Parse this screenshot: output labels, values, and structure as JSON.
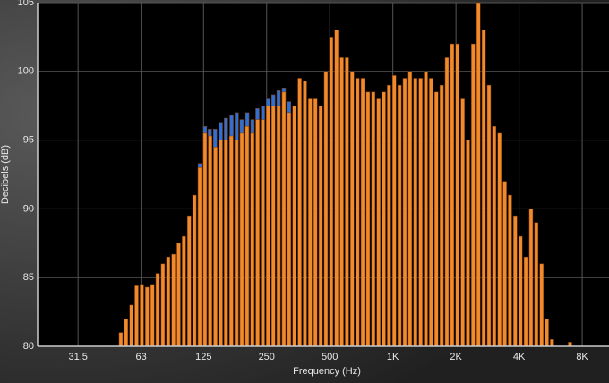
{
  "chart_data": {
    "type": "bar",
    "x_label": "Frequency (Hz)",
    "y_label": "Decibels (dB)",
    "log_x": true,
    "grid": true,
    "xlim": [
      20.2,
      10740
    ],
    "ylim": [
      80,
      105
    ],
    "xticks": [
      31.5,
      63,
      125,
      250,
      500,
      {
        "value": 1000,
        "label": "1K"
      },
      {
        "value": 2000,
        "label": "2K"
      },
      {
        "value": 4000,
        "label": "4K"
      },
      {
        "value": 8000,
        "label": "8K"
      }
    ],
    "yticks": [
      80,
      85,
      90,
      95,
      100,
      105
    ],
    "series": [
      {
        "color": "#2f6fd6",
        "x": [
          120,
          127,
          134,
          142,
          151,
          160,
          170,
          180,
          190,
          202,
          214,
          226,
          240,
          254,
          269,
          285,
          302,
          320
        ],
        "values": [
          93.3,
          96,
          95.8,
          95.8,
          96.3,
          96.6,
          96.8,
          97,
          96.5,
          97,
          96.5,
          97.3,
          97.5,
          98,
          98.3,
          98.6,
          98.8,
          97.8
        ]
      },
      {
        "color": "#f08a2c",
        "x": [
          40,
          42.4,
          44.9,
          47.6,
          50.4,
          53.4,
          56.6,
          59.9,
          63.5,
          67.3,
          71.3,
          75.5,
          80,
          84.8,
          89.8,
          95.1,
          100.8,
          106.8,
          113.1,
          119.9,
          127,
          134.5,
          142.5,
          151,
          160,
          169.5,
          179.6,
          190.3,
          201.6,
          213.6,
          226.3,
          239.7,
          254,
          269.1,
          285.1,
          302,
          320,
          339,
          359.2,
          380.6,
          403.2,
          427.1,
          452.5,
          479.5,
          508,
          538.2,
          570.2,
          604.1,
          640,
          678.1,
          718.4,
          761.1,
          806.3,
          854.3,
          905.1,
          958.9,
          1016,
          1076,
          1140,
          1208,
          1280,
          1356,
          1437,
          1522,
          1613,
          1709,
          1810,
          1918,
          2032,
          2153,
          2281,
          2416,
          2560,
          2712,
          2874,
          3044,
          3225,
          3417,
          3620,
          3836,
          4064,
          4305,
          4561,
          4833,
          5120,
          5424,
          5747,
          6089,
          7000
        ],
        "values": [
          80,
          80,
          80,
          80,
          81,
          82,
          83,
          84.4,
          84.5,
          84.3,
          84.5,
          85.3,
          86,
          86.5,
          86.7,
          87.5,
          88,
          89.5,
          91,
          93,
          95.5,
          95.3,
          94.5,
          95,
          95,
          95.3,
          95,
          95.5,
          96,
          95.5,
          96.5,
          96.5,
          97.5,
          97.5,
          97.5,
          98.5,
          97,
          97.5,
          99.5,
          99.3,
          98,
          98,
          97.5,
          100,
          102.5,
          103,
          101,
          101,
          100,
          99.5,
          99.5,
          98.5,
          98.5,
          98,
          98.5,
          99,
          99.7,
          99,
          99.5,
          100,
          99.5,
          99.5,
          100,
          99.5,
          98.5,
          99,
          101,
          102,
          102,
          98,
          95,
          102,
          105,
          103,
          99,
          96,
          95.5,
          92,
          91,
          89.5,
          88,
          86.5,
          90,
          89,
          86,
          82,
          80.5,
          80,
          80.3
        ]
      }
    ]
  }
}
